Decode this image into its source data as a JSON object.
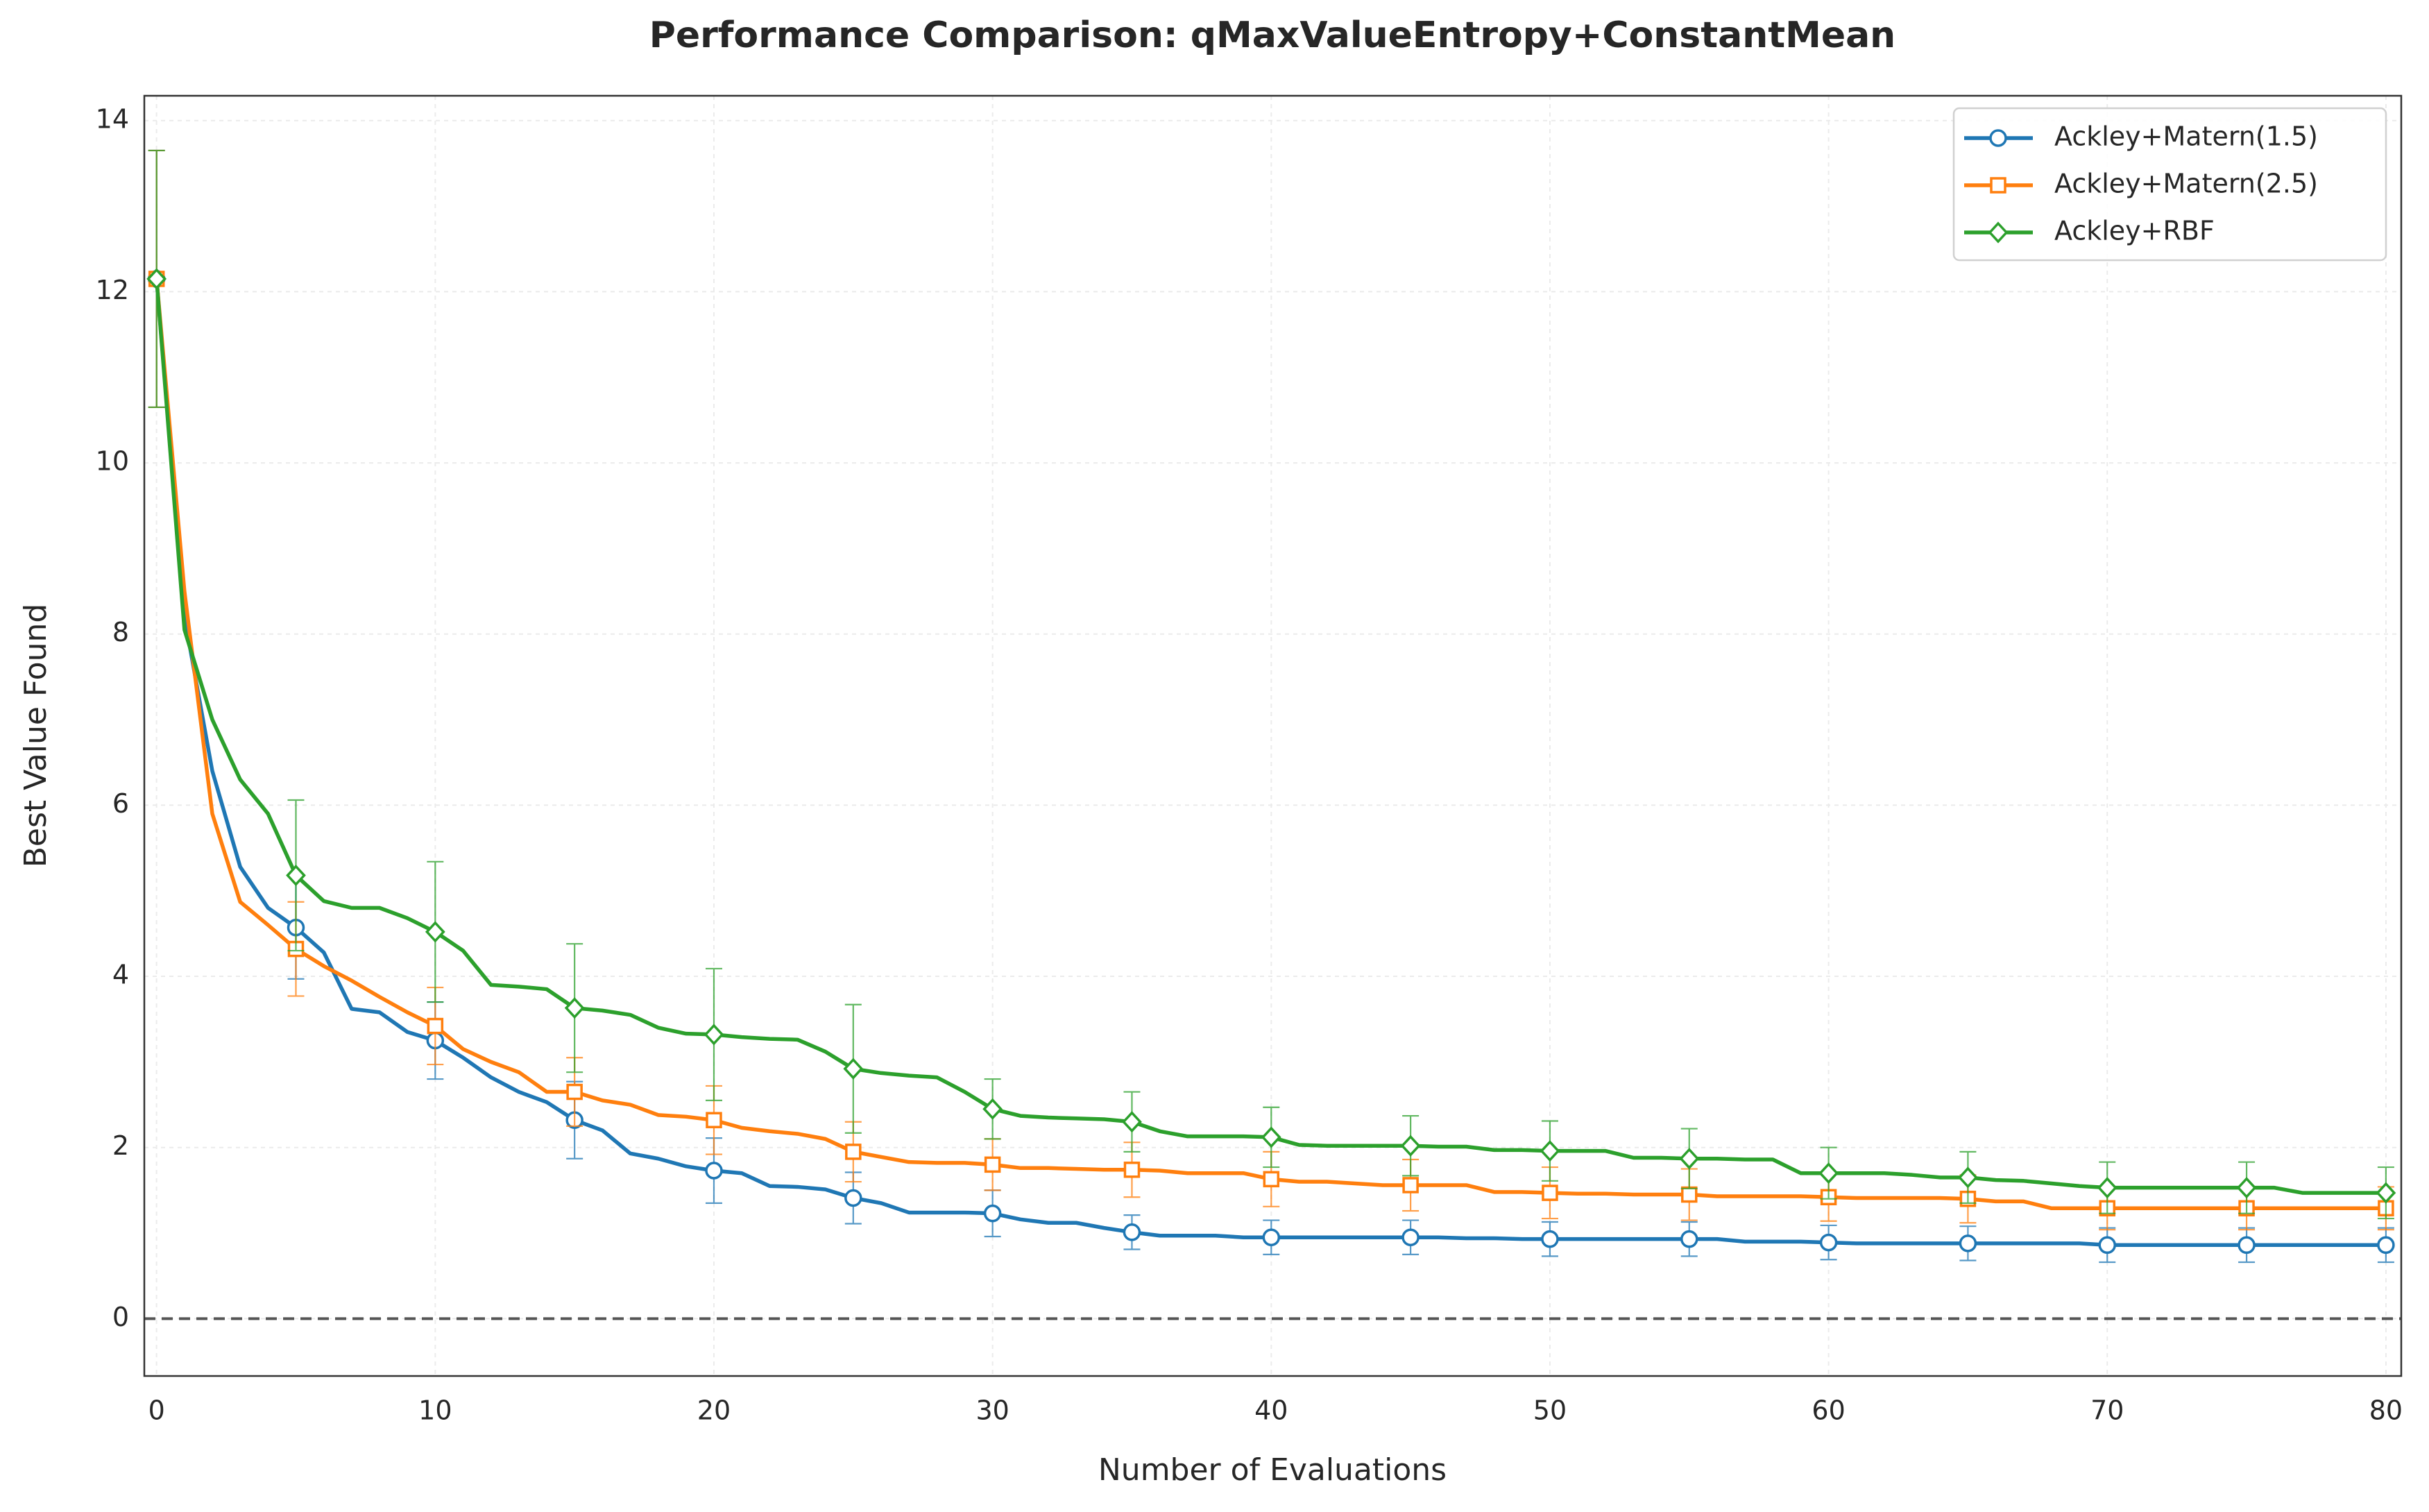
{
  "chart_data": {
    "type": "line",
    "title": "Performance Comparison: qMaxValueEntropy+ConstantMean",
    "x_label": "Number of Evaluations",
    "y_label": "Best Value Found",
    "x": [
      0,
      1,
      2,
      3,
      4,
      5,
      6,
      7,
      8,
      9,
      10,
      11,
      12,
      13,
      14,
      15,
      16,
      17,
      18,
      19,
      20,
      21,
      22,
      23,
      24,
      25,
      26,
      27,
      28,
      29,
      30,
      31,
      32,
      33,
      34,
      35,
      36,
      37,
      38,
      39,
      40,
      41,
      42,
      43,
      44,
      45,
      46,
      47,
      48,
      49,
      50,
      51,
      52,
      53,
      54,
      55,
      56,
      57,
      58,
      59,
      60,
      61,
      62,
      63,
      64,
      65,
      66,
      67,
      68,
      69,
      70,
      71,
      72,
      73,
      74,
      75,
      76,
      77,
      78,
      79,
      80
    ],
    "series": [
      {
        "name": "Ackley+Matern(1.5)",
        "color": "#1f77b4",
        "marker": "circle",
        "values": [
          12.15,
          8.2,
          6.4,
          5.28,
          4.8,
          4.57,
          4.28,
          3.62,
          3.58,
          3.35,
          3.25,
          3.05,
          2.82,
          2.65,
          2.53,
          2.32,
          2.2,
          1.93,
          1.87,
          1.78,
          1.73,
          1.7,
          1.55,
          1.54,
          1.51,
          1.41,
          1.35,
          1.24,
          1.24,
          1.24,
          1.23,
          1.16,
          1.12,
          1.12,
          1.06,
          1.01,
          0.97,
          0.97,
          0.97,
          0.95,
          0.95,
          0.95,
          0.95,
          0.95,
          0.95,
          0.95,
          0.95,
          0.94,
          0.94,
          0.93,
          0.93,
          0.93,
          0.93,
          0.93,
          0.93,
          0.93,
          0.93,
          0.9,
          0.9,
          0.9,
          0.89,
          0.88,
          0.88,
          0.88,
          0.88,
          0.88,
          0.88,
          0.88,
          0.88,
          0.88,
          0.86,
          0.86,
          0.86,
          0.86,
          0.86,
          0.86,
          0.86,
          0.86,
          0.86,
          0.86,
          0.86
        ],
        "errors": [
          1.5,
          null,
          null,
          null,
          null,
          0.6,
          null,
          null,
          null,
          null,
          0.45,
          null,
          null,
          null,
          null,
          0.45,
          null,
          null,
          null,
          null,
          0.38,
          null,
          null,
          null,
          null,
          0.3,
          null,
          null,
          null,
          null,
          0.27,
          null,
          null,
          null,
          null,
          0.2,
          null,
          null,
          null,
          null,
          0.2,
          null,
          null,
          null,
          null,
          0.2,
          null,
          null,
          null,
          null,
          0.2,
          null,
          null,
          null,
          null,
          0.2,
          null,
          null,
          null,
          null,
          0.2,
          null,
          null,
          null,
          null,
          0.2,
          null,
          null,
          null,
          null,
          0.2,
          null,
          null,
          null,
          null,
          0.2,
          null,
          null,
          null,
          null,
          0.2
        ]
      },
      {
        "name": "Ackley+Matern(2.5)",
        "color": "#ff7f0e",
        "marker": "square",
        "values": [
          12.15,
          8.5,
          5.9,
          4.87,
          4.6,
          4.32,
          4.12,
          3.95,
          3.76,
          3.58,
          3.42,
          3.15,
          3.0,
          2.88,
          2.65,
          2.65,
          2.55,
          2.5,
          2.38,
          2.36,
          2.32,
          2.23,
          2.19,
          2.16,
          2.1,
          1.95,
          1.89,
          1.83,
          1.82,
          1.82,
          1.8,
          1.76,
          1.76,
          1.75,
          1.74,
          1.74,
          1.73,
          1.7,
          1.7,
          1.7,
          1.63,
          1.6,
          1.6,
          1.58,
          1.56,
          1.56,
          1.56,
          1.56,
          1.48,
          1.48,
          1.47,
          1.46,
          1.46,
          1.45,
          1.45,
          1.45,
          1.43,
          1.43,
          1.43,
          1.43,
          1.42,
          1.41,
          1.41,
          1.41,
          1.41,
          1.4,
          1.37,
          1.37,
          1.29,
          1.29,
          1.29,
          1.29,
          1.29,
          1.29,
          1.29,
          1.29,
          1.29,
          1.29,
          1.29,
          1.29,
          1.29
        ],
        "errors": [
          1.5,
          null,
          null,
          null,
          null,
          0.55,
          null,
          null,
          null,
          null,
          0.45,
          null,
          null,
          null,
          null,
          0.4,
          null,
          null,
          null,
          null,
          0.4,
          null,
          null,
          null,
          null,
          0.35,
          null,
          null,
          null,
          null,
          0.3,
          null,
          null,
          null,
          null,
          0.32,
          null,
          null,
          null,
          null,
          0.32,
          null,
          null,
          null,
          null,
          0.3,
          null,
          null,
          null,
          null,
          0.3,
          null,
          null,
          null,
          null,
          0.3,
          null,
          null,
          null,
          null,
          0.28,
          null,
          null,
          null,
          null,
          0.28,
          null,
          null,
          null,
          null,
          0.25,
          null,
          null,
          null,
          null,
          0.25,
          null,
          null,
          null,
          null,
          0.25
        ]
      },
      {
        "name": "Ackley+RBF",
        "color": "#2ca02c",
        "marker": "diamond",
        "values": [
          12.15,
          8.05,
          7.0,
          6.3,
          5.9,
          5.18,
          4.88,
          4.8,
          4.8,
          4.68,
          4.52,
          4.3,
          3.9,
          3.88,
          3.85,
          3.63,
          3.6,
          3.55,
          3.4,
          3.33,
          3.32,
          3.29,
          3.27,
          3.26,
          3.12,
          2.92,
          2.87,
          2.84,
          2.82,
          2.65,
          2.45,
          2.37,
          2.35,
          2.34,
          2.33,
          2.3,
          2.19,
          2.13,
          2.13,
          2.13,
          2.12,
          2.03,
          2.02,
          2.02,
          2.02,
          2.02,
          2.01,
          2.01,
          1.97,
          1.97,
          1.96,
          1.96,
          1.96,
          1.88,
          1.88,
          1.87,
          1.87,
          1.86,
          1.86,
          1.7,
          1.7,
          1.7,
          1.7,
          1.68,
          1.65,
          1.65,
          1.62,
          1.61,
          1.58,
          1.55,
          1.53,
          1.53,
          1.53,
          1.53,
          1.53,
          1.53,
          1.53,
          1.47,
          1.47,
          1.47,
          1.47
        ],
        "errors": [
          1.5,
          null,
          null,
          null,
          null,
          0.88,
          null,
          null,
          null,
          null,
          0.82,
          null,
          null,
          null,
          null,
          0.75,
          null,
          null,
          null,
          null,
          0.77,
          null,
          null,
          null,
          null,
          0.75,
          null,
          null,
          null,
          null,
          0.35,
          null,
          null,
          null,
          null,
          0.35,
          null,
          null,
          null,
          null,
          0.35,
          null,
          null,
          null,
          null,
          0.35,
          null,
          null,
          null,
          null,
          0.35,
          null,
          null,
          null,
          null,
          0.35,
          null,
          null,
          null,
          null,
          0.3,
          null,
          null,
          null,
          null,
          0.3,
          null,
          null,
          null,
          null,
          0.3,
          null,
          null,
          null,
          null,
          0.3,
          null,
          null,
          null,
          null,
          0.3
        ]
      }
    ],
    "markevery": 5,
    "hline": 0,
    "xlim": [
      -0.44,
      80.55
    ],
    "ylim": [
      -0.67,
      14.29
    ],
    "xticks": [
      0,
      10,
      20,
      30,
      40,
      50,
      60,
      70,
      80
    ],
    "yticks": [
      0,
      2,
      4,
      6,
      8,
      10,
      12,
      14
    ],
    "grid": true,
    "legend": "upper right"
  }
}
